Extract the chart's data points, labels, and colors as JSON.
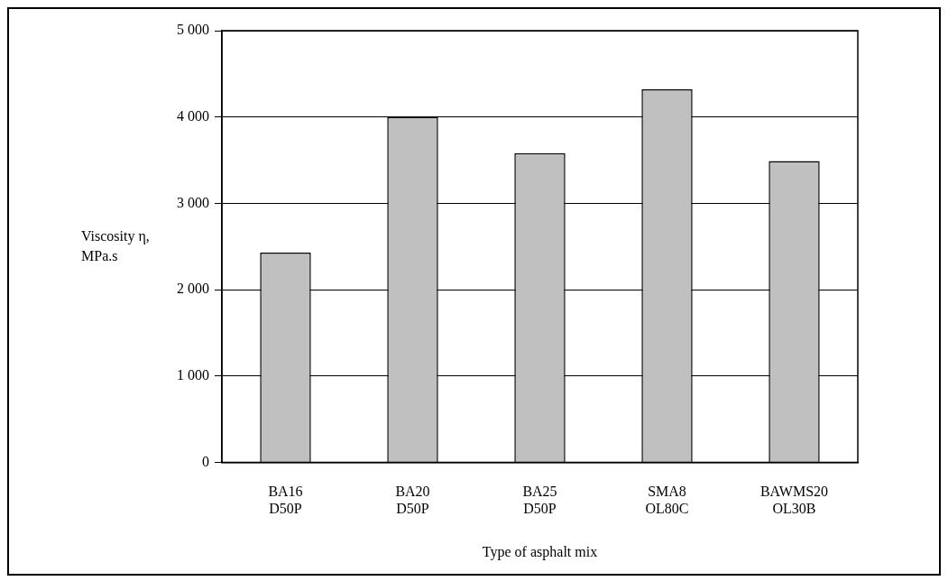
{
  "chart_data": {
    "type": "bar",
    "xlabel": "Type of asphalt mix",
    "ylabel": "Viscosity η,\nMPa.s",
    "categories": [
      "BA16\nD50P",
      "BA20\nD50P",
      "BA25\nD50P",
      "SMA8\nOL80C",
      "BAWMS20\nOL30B"
    ],
    "values": [
      2430,
      4000,
      3580,
      4320,
      3490
    ],
    "color": "#c0c0c0",
    "ylim": [
      0,
      5000
    ],
    "yticks": [
      {
        "value": 0,
        "label": "0"
      },
      {
        "value": 1000,
        "label": "1 000"
      },
      {
        "value": 2000,
        "label": "2 000"
      },
      {
        "value": 3000,
        "label": "3 000"
      },
      {
        "value": 4000,
        "label": "4 000"
      },
      {
        "value": 5000,
        "label": "5 000"
      }
    ],
    "grid": "y",
    "legend": false
  }
}
